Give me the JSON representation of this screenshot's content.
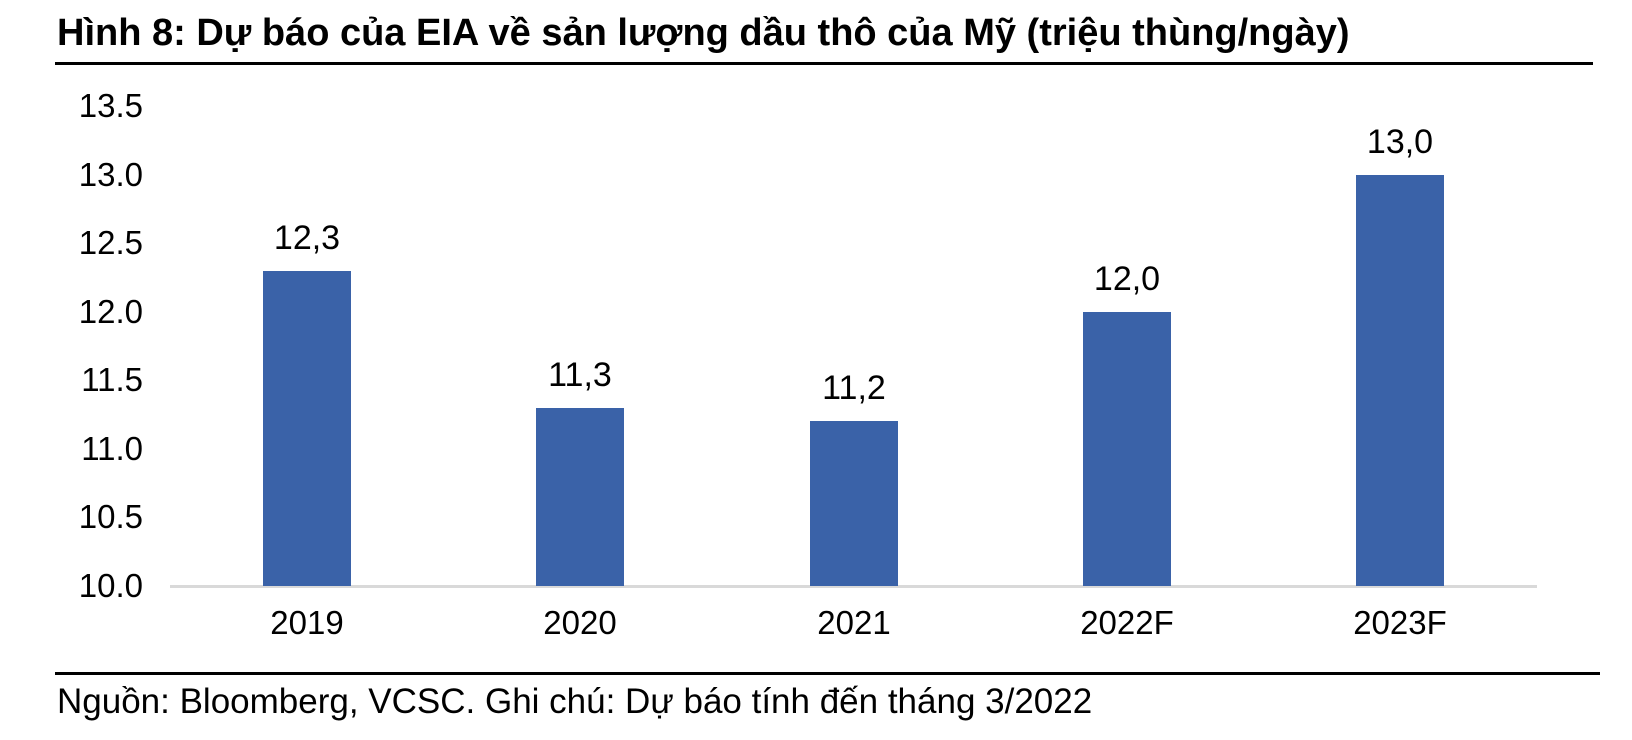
{
  "figure": {
    "title": "Hình 8: Dự báo của EIA về sản lượng dầu thô của Mỹ (triệu thùng/ngày)",
    "source_note": "Nguồn: Bloomberg, VCSC. Ghi chú: Dự báo tính đến tháng 3/2022"
  },
  "colors": {
    "bar": "#3A62A8",
    "axis_line": "#D9D9D9",
    "rule": "#000000",
    "text": "#000000"
  },
  "chart_data": {
    "type": "bar",
    "title": "Dự báo của EIA về sản lượng dầu thô của Mỹ (triệu thùng/ngày)",
    "categories": [
      "2019",
      "2020",
      "2021",
      "2022F",
      "2023F"
    ],
    "values": [
      12.3,
      11.3,
      11.2,
      12.0,
      13.0
    ],
    "value_labels": [
      "12,3",
      "11,3",
      "11,2",
      "12,0",
      "13,0"
    ],
    "xlabel": "",
    "ylabel": "",
    "ylim": [
      10.0,
      13.5
    ],
    "y_ticks": [
      13.5,
      13.0,
      12.5,
      12.0,
      11.5,
      11.0,
      10.5,
      10.0
    ],
    "y_tick_labels": [
      "13.5",
      "13.0",
      "12.5",
      "12.0",
      "11.5",
      "11.0",
      "10.5",
      "10.0"
    ],
    "grid": false,
    "legend_position": "none",
    "bar_color": "#3A62A8"
  }
}
